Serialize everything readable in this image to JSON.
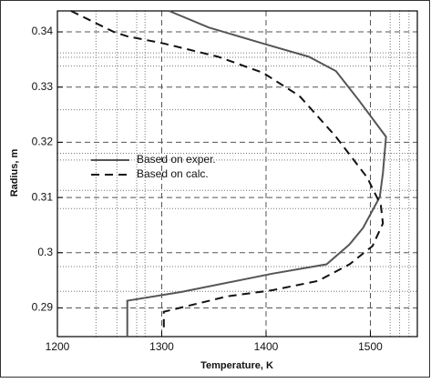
{
  "chart_data": {
    "type": "line",
    "xlabel": "Temperature, K",
    "ylabel": "Radius, m",
    "xlim": [
      1200,
      1545
    ],
    "ylim": [
      0.2848,
      0.3438
    ],
    "xticks": [
      1200,
      1300,
      1400,
      1500
    ],
    "yticks": [
      0.29,
      0.3,
      0.31,
      0.32,
      0.33,
      0.34
    ],
    "grid": true,
    "xminor": [
      1237,
      1257,
      1276,
      1284,
      1519,
      1528,
      1537
    ],
    "yminor": [
      0.293,
      0.2975,
      0.308,
      0.3113,
      0.3168,
      0.318,
      0.3259,
      0.3338,
      0.3354,
      0.3362
    ],
    "legend": "left",
    "series": [
      {
        "name": "Based on exper.",
        "color": "#555555",
        "style": "solid",
        "x": [
          1307,
          1345,
          1397,
          1441,
          1467,
          1489,
          1515,
          1512,
          1509,
          1493,
          1480,
          1458,
          1406,
          1319,
          1267,
          1267
        ],
        "values": [
          0.3438,
          0.3408,
          0.3379,
          0.3355,
          0.3329,
          0.3276,
          0.321,
          0.3144,
          0.3101,
          0.3045,
          0.3015,
          0.2979,
          0.2962,
          0.2929,
          0.2913,
          0.2848
        ]
      },
      {
        "name": "Based on calc.",
        "color": "#111111",
        "style": "dashed",
        "x": [
          1213,
          1254,
          1267,
          1302,
          1354,
          1397,
          1432,
          1467,
          1497,
          1510,
          1512,
          1502,
          1480,
          1450,
          1406,
          1363,
          1302,
          1302
        ],
        "values": [
          0.3438,
          0.34,
          0.3392,
          0.3379,
          0.3355,
          0.3326,
          0.3284,
          0.321,
          0.3136,
          0.3086,
          0.3053,
          0.3012,
          0.2979,
          0.2949,
          0.2932,
          0.2921,
          0.2893,
          0.2864
        ]
      }
    ]
  }
}
